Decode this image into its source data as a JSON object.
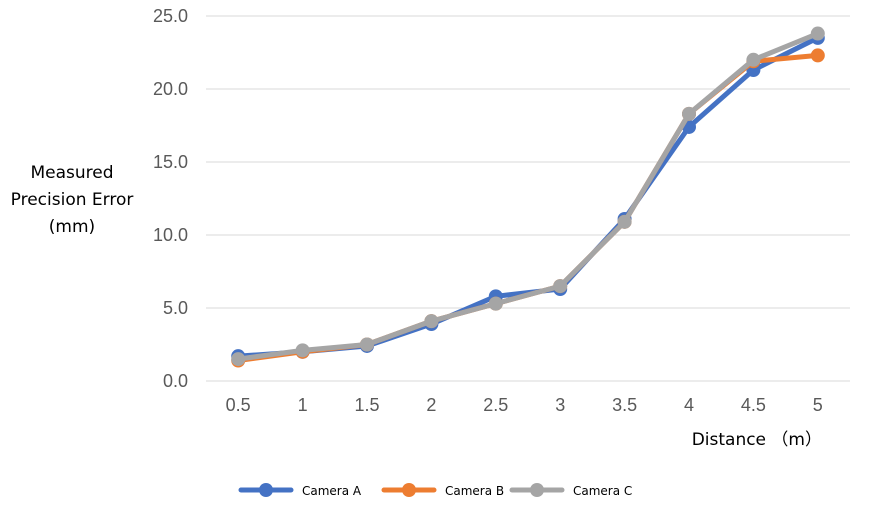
{
  "chart_data": {
    "type": "line",
    "title": "",
    "xlabel": "Distance （m）",
    "ylabel_lines": [
      "Measured",
      "Precision Error",
      "(mm)"
    ],
    "categories": [
      "0.5",
      "1",
      "1.5",
      "2",
      "2.5",
      "3",
      "3.5",
      "4",
      "4.5",
      "5"
    ],
    "y_ticks": [
      "0.0",
      "5.0",
      "10.0",
      "15.0",
      "20.0",
      "25.0"
    ],
    "ylim": [
      0,
      25
    ],
    "grid": true,
    "legend_position": "bottom",
    "series": [
      {
        "name": "Camera A",
        "color": "#4472C4",
        "values": [
          1.7,
          2.0,
          2.4,
          3.9,
          5.8,
          6.3,
          11.1,
          17.4,
          21.3,
          23.5
        ]
      },
      {
        "name": "Camera B",
        "color": "#ED7D31",
        "values": [
          1.4,
          2.0,
          2.5,
          4.1,
          5.3,
          6.5,
          10.9,
          18.3,
          21.9,
          22.3
        ]
      },
      {
        "name": "Camera C",
        "color": "#A5A5A5",
        "values": [
          1.5,
          2.1,
          2.5,
          4.1,
          5.3,
          6.5,
          10.9,
          18.3,
          22.0,
          23.8
        ]
      }
    ]
  }
}
